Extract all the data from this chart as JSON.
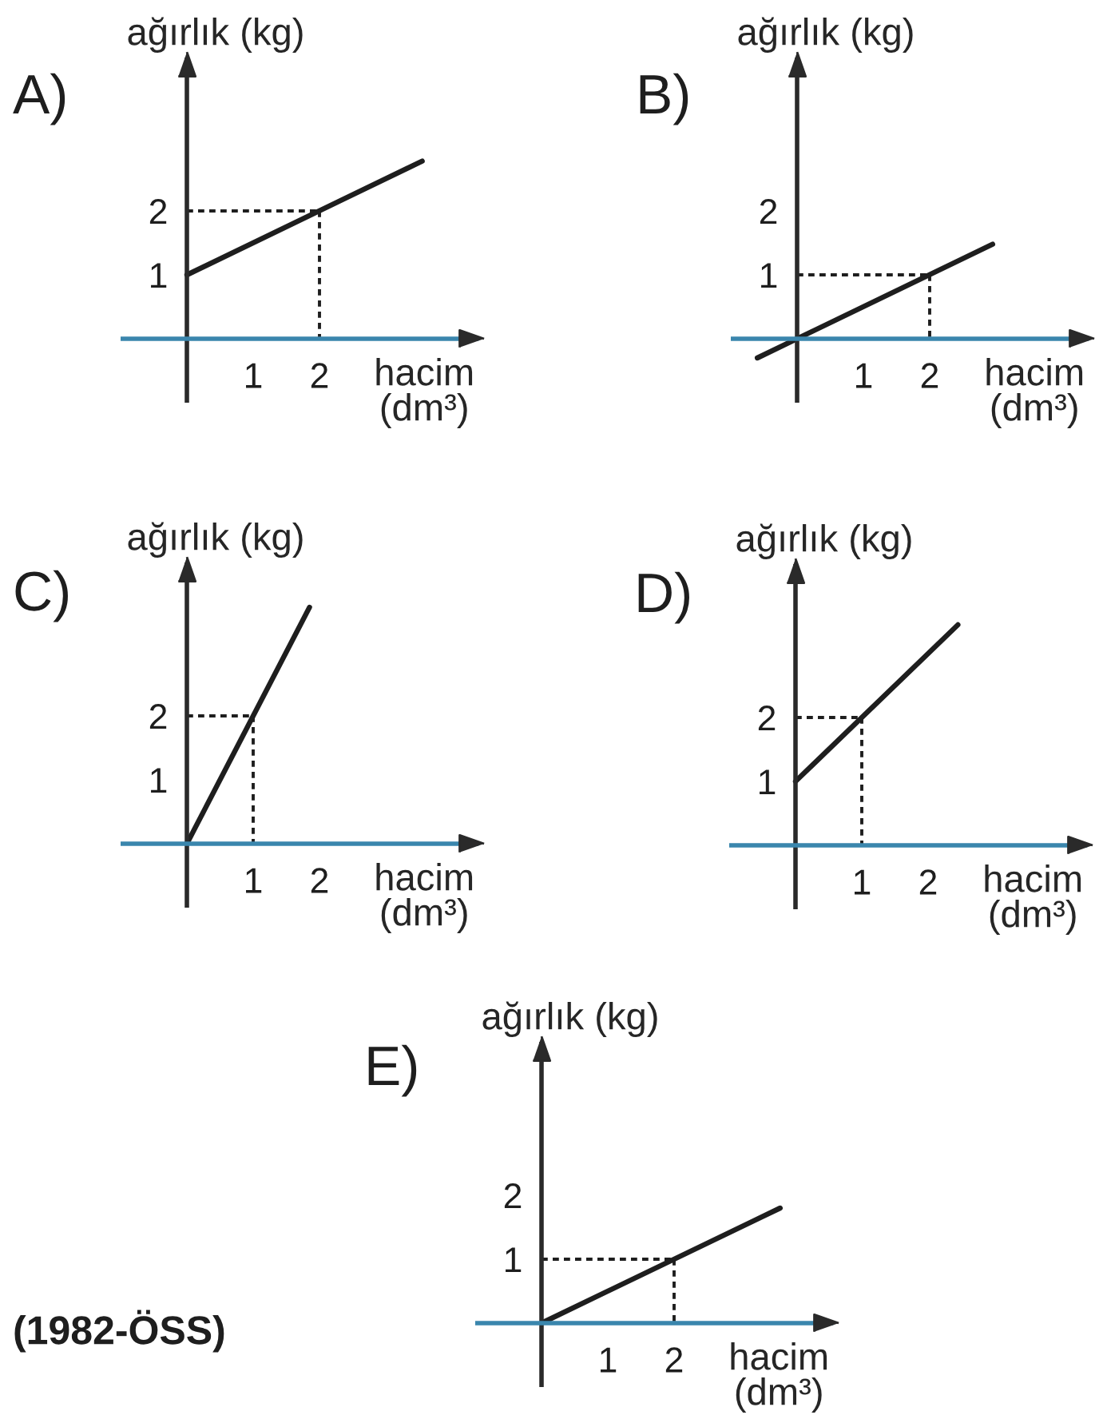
{
  "chart_data": [
    {
      "type": "line",
      "title": "A)",
      "xlabel": "hacim\n(dm³)",
      "ylabel": "ağırlık (kg)",
      "xlim": [
        -1,
        4.4
      ],
      "ylim": [
        -1,
        4.4
      ],
      "xticks": [
        1,
        2
      ],
      "yticks": [
        1,
        2
      ],
      "series": [
        {
          "color": "#1e1e1e",
          "x": [
            0,
            3.55
          ],
          "values": [
            1,
            2.78
          ]
        },
        {
          "color": "#1e1e1e",
          "x": [
            0,
            2
          ],
          "values": [
            2,
            2
          ],
          "line_style": "dashed"
        },
        {
          "color": "#1e1e1e",
          "x": [
            2,
            2
          ],
          "values": [
            2,
            0
          ],
          "line_style": "dashed"
        }
      ]
    },
    {
      "type": "line",
      "title": "B)",
      "xlabel": "hacim\n(dm³)",
      "ylabel": "ağırlık (kg)",
      "xlim": [
        -1,
        4.4
      ],
      "ylim": [
        -1,
        4.4
      ],
      "xticks": [
        1,
        2
      ],
      "yticks": [
        1,
        2
      ],
      "series": [
        {
          "color": "#1e1e1e",
          "x": [
            -0.6,
            2.95
          ],
          "values": [
            -0.3,
            1.48
          ]
        },
        {
          "color": "#1e1e1e",
          "x": [
            0,
            2
          ],
          "values": [
            1,
            1
          ],
          "line_style": "dashed"
        },
        {
          "color": "#1e1e1e",
          "x": [
            2,
            2
          ],
          "values": [
            1,
            0
          ],
          "line_style": "dashed"
        }
      ]
    },
    {
      "type": "line",
      "title": "C)",
      "xlabel": "hacim\n(dm³)",
      "ylabel": "ağırlık (kg)",
      "xlim": [
        -1,
        4.4
      ],
      "ylim": [
        -1,
        4.4
      ],
      "xticks": [
        1,
        2
      ],
      "yticks": [
        1,
        2
      ],
      "series": [
        {
          "color": "#1e1e1e",
          "x": [
            0,
            1.85
          ],
          "values": [
            0,
            3.7
          ]
        },
        {
          "color": "#1e1e1e",
          "x": [
            0,
            1
          ],
          "values": [
            2,
            2
          ],
          "line_style": "dashed"
        },
        {
          "color": "#1e1e1e",
          "x": [
            1,
            1
          ],
          "values": [
            2,
            0
          ],
          "line_style": "dashed"
        }
      ]
    },
    {
      "type": "line",
      "title": "D)",
      "xlabel": "hacim\n(dm³)",
      "ylabel": "ağırlık (kg)",
      "xlim": [
        -1,
        4.4
      ],
      "ylim": [
        -1,
        4.4
      ],
      "xticks": [
        1,
        2
      ],
      "yticks": [
        1,
        2
      ],
      "series": [
        {
          "color": "#1e1e1e",
          "x": [
            0,
            2.45
          ],
          "values": [
            1,
            3.45
          ]
        },
        {
          "color": "#1e1e1e",
          "x": [
            0,
            1
          ],
          "values": [
            2,
            2
          ],
          "line_style": "dashed"
        },
        {
          "color": "#1e1e1e",
          "x": [
            1,
            1
          ],
          "values": [
            2,
            0
          ],
          "line_style": "dashed"
        }
      ]
    },
    {
      "type": "line",
      "title": "E)",
      "xlabel": "hacim\n(dm³)",
      "ylabel": "ağırlık (kg)",
      "xlim": [
        -1,
        4.4
      ],
      "ylim": [
        -1,
        4.4
      ],
      "xticks": [
        1,
        2
      ],
      "yticks": [
        1,
        2
      ],
      "series": [
        {
          "color": "#1e1e1e",
          "x": [
            0,
            3.6
          ],
          "values": [
            0,
            1.8
          ]
        },
        {
          "color": "#1e1e1e",
          "x": [
            0,
            2
          ],
          "values": [
            1,
            1
          ],
          "line_style": "dashed"
        },
        {
          "color": "#1e1e1e",
          "x": [
            2,
            2
          ],
          "values": [
            1,
            0
          ],
          "line_style": "dashed"
        }
      ],
      "annotations": [
        "(1982-ÖSS)"
      ]
    }
  ]
}
